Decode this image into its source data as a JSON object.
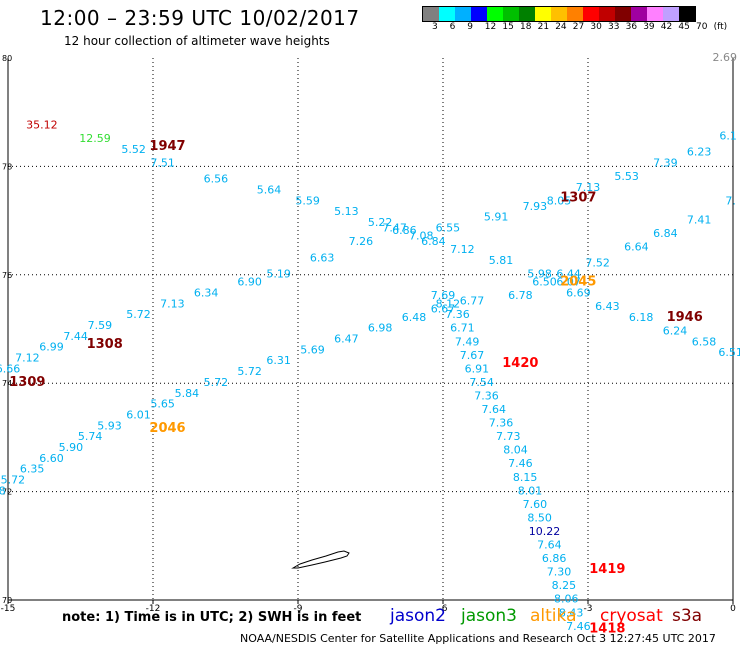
{
  "header": {
    "title": "12:00 – 23:59 UTC 10/02/2017",
    "subtitle": "12 hour collection of altimeter wave heights"
  },
  "colorbar": {
    "colors": [
      "#808080",
      "#00ffff",
      "#00b0ff",
      "#0000ff",
      "#00ff00",
      "#00c000",
      "#008000",
      "#ffff00",
      "#ffc000",
      "#ff8000",
      "#ff0000",
      "#c00000",
      "#800000",
      "#a000a0",
      "#ff80ff",
      "#c0a0ff",
      "#000000"
    ],
    "labels": [
      "3",
      "6",
      "9",
      "12",
      "15",
      "18",
      "21",
      "24",
      "27",
      "30",
      "33",
      "36",
      "39",
      "42",
      "45",
      "70",
      "(ft)"
    ]
  },
  "map": {
    "lon_ticks": [
      "-15",
      "-12",
      "-9",
      "-6",
      "-3",
      "0"
    ],
    "lat_ticks": [
      "70",
      "72",
      "74",
      "76",
      "78",
      "80"
    ],
    "max_label": "2.69"
  },
  "observations": [
    {
      "t": "35.12",
      "lon": -14.3,
      "lat": 78.7,
      "c": "#c00000"
    },
    {
      "t": "12.59",
      "lon": -13.2,
      "lat": 78.45,
      "c": "#33dd33"
    },
    {
      "t": "5.52",
      "lon": -12.4,
      "lat": 78.25,
      "c": "#00b0f0"
    },
    {
      "t": "7.51",
      "lon": -11.8,
      "lat": 78.0,
      "c": "#00b0f0"
    },
    {
      "t": "6.56",
      "lon": -10.7,
      "lat": 77.7,
      "c": "#00b0f0"
    },
    {
      "t": "5.64",
      "lon": -9.6,
      "lat": 77.5,
      "c": "#00b0f0"
    },
    {
      "t": "5.59",
      "lon": -8.8,
      "lat": 77.3,
      "c": "#00b0f0"
    },
    {
      "t": "5.13",
      "lon": -8.0,
      "lat": 77.1,
      "c": "#00b0f0"
    },
    {
      "t": "5.22",
      "lon": -7.3,
      "lat": 76.9,
      "c": "#00b0f0"
    },
    {
      "t": "6.86",
      "lon": -6.8,
      "lat": 76.75,
      "c": "#00b0f0"
    },
    {
      "t": "7.08",
      "lon": -6.45,
      "lat": 76.65,
      "c": "#00b0f0"
    },
    {
      "t": "6.84",
      "lon": -6.2,
      "lat": 76.55,
      "c": "#00b0f0"
    },
    {
      "t": "6.55",
      "lon": -5.9,
      "lat": 76.8,
      "c": "#00b0f0"
    },
    {
      "t": "5.91",
      "lon": -4.9,
      "lat": 77.0,
      "c": "#00b0f0"
    },
    {
      "t": "7.93",
      "lon": -4.1,
      "lat": 77.2,
      "c": "#00b0f0"
    },
    {
      "t": "8.05",
      "lon": -3.6,
      "lat": 77.3,
      "c": "#00b0f0"
    },
    {
      "t": "7.13",
      "lon": -3.0,
      "lat": 77.55,
      "c": "#00b0f0"
    },
    {
      "t": "5.53",
      "lon": -2.2,
      "lat": 77.75,
      "c": "#00b0f0"
    },
    {
      "t": "7.39",
      "lon": -1.4,
      "lat": 78.0,
      "c": "#00b0f0"
    },
    {
      "t": "6.23",
      "lon": -0.7,
      "lat": 78.2,
      "c": "#00b0f0"
    },
    {
      "t": "6.1",
      "lon": -0.1,
      "lat": 78.5,
      "c": "#00b0f0"
    },
    {
      "t": "7.12",
      "lon": -5.6,
      "lat": 76.4,
      "c": "#00b0f0"
    },
    {
      "t": "5.81",
      "lon": -4.8,
      "lat": 76.2,
      "c": "#00b0f0"
    },
    {
      "t": "5.98",
      "lon": -4.0,
      "lat": 75.95,
      "c": "#00b0f0"
    },
    {
      "t": "6.44",
      "lon": -3.4,
      "lat": 75.95,
      "c": "#00b0f0"
    },
    {
      "t": "6.50",
      "lon": -3.9,
      "lat": 75.8,
      "c": "#00b0f0"
    },
    {
      "t": "6.07",
      "lon": -3.4,
      "lat": 75.8,
      "c": "#00b0f0"
    },
    {
      "t": "6.78",
      "lon": -4.4,
      "lat": 75.55,
      "c": "#00b0f0"
    },
    {
      "t": "7.52",
      "lon": -2.8,
      "lat": 76.15,
      "c": "#00b0f0"
    },
    {
      "t": "6.64",
      "lon": -2.0,
      "lat": 76.45,
      "c": "#00b0f0"
    },
    {
      "t": "6.84",
      "lon": -1.4,
      "lat": 76.7,
      "c": "#00b0f0"
    },
    {
      "t": "7.41",
      "lon": -0.7,
      "lat": 76.95,
      "c": "#00b0f0"
    },
    {
      "t": "7.",
      "lon": -0.05,
      "lat": 77.3,
      "c": "#00b0f0"
    },
    {
      "t": "6.69",
      "lon": -3.2,
      "lat": 75.6,
      "c": "#00b0f0"
    },
    {
      "t": "6.43",
      "lon": -2.6,
      "lat": 75.35,
      "c": "#00b0f0"
    },
    {
      "t": "6.18",
      "lon": -1.9,
      "lat": 75.15,
      "c": "#00b0f0"
    },
    {
      "t": "6.24",
      "lon": -1.2,
      "lat": 74.9,
      "c": "#00b0f0"
    },
    {
      "t": "6.58",
      "lon": -0.6,
      "lat": 74.7,
      "c": "#00b0f0"
    },
    {
      "t": "6.51",
      "lon": -0.05,
      "lat": 74.5,
      "c": "#00b0f0"
    },
    {
      "t": "6.90",
      "lon": -10.0,
      "lat": 75.8,
      "c": "#00b0f0"
    },
    {
      "t": "5.19",
      "lon": -9.4,
      "lat": 75.95,
      "c": "#00b0f0"
    },
    {
      "t": "6.63",
      "lon": -8.5,
      "lat": 76.25,
      "c": "#00b0f0"
    },
    {
      "t": "7.26",
      "lon": -7.7,
      "lat": 76.55,
      "c": "#00b0f0"
    },
    {
      "t": "7.47",
      "lon": -7.0,
      "lat": 76.8,
      "c": "#00b0f0"
    },
    {
      "t": "6.34",
      "lon": -10.9,
      "lat": 75.6,
      "c": "#00b0f0"
    },
    {
      "t": "7.13",
      "lon": -11.6,
      "lat": 75.4,
      "c": "#00b0f0"
    },
    {
      "t": "5.72",
      "lon": -12.3,
      "lat": 75.2,
      "c": "#00b0f0"
    },
    {
      "t": "7.59",
      "lon": -13.1,
      "lat": 75.0,
      "c": "#00b0f0"
    },
    {
      "t": "7.44",
      "lon": -13.6,
      "lat": 74.8,
      "c": "#00b0f0"
    },
    {
      "t": "6.99",
      "lon": -14.1,
      "lat": 74.6,
      "c": "#00b0f0"
    },
    {
      "t": "7.12",
      "lon": -14.6,
      "lat": 74.4,
      "c": "#00b0f0"
    },
    {
      "t": "6.66",
      "lon": -15.0,
      "lat": 74.2,
      "c": "#00b0f0"
    },
    {
      "t": "6.48",
      "lon": -6.6,
      "lat": 75.15,
      "c": "#00b0f0"
    },
    {
      "t": "6.98",
      "lon": -7.3,
      "lat": 74.95,
      "c": "#00b0f0"
    },
    {
      "t": "6.47",
      "lon": -8.0,
      "lat": 74.75,
      "c": "#00b0f0"
    },
    {
      "t": "5.69",
      "lon": -8.7,
      "lat": 74.55,
      "c": "#00b0f0"
    },
    {
      "t": "6.31",
      "lon": -9.4,
      "lat": 74.35,
      "c": "#00b0f0"
    },
    {
      "t": "5.72",
      "lon": -10.0,
      "lat": 74.15,
      "c": "#00b0f0"
    },
    {
      "t": "5.72",
      "lon": -10.7,
      "lat": 73.95,
      "c": "#00b0f0"
    },
    {
      "t": "5.84",
      "lon": -11.3,
      "lat": 73.75,
      "c": "#00b0f0"
    },
    {
      "t": "5.65",
      "lon": -11.8,
      "lat": 73.55,
      "c": "#00b0f0"
    },
    {
      "t": "6.01",
      "lon": -12.3,
      "lat": 73.35,
      "c": "#00b0f0"
    },
    {
      "t": "5.93",
      "lon": -12.9,
      "lat": 73.15,
      "c": "#00b0f0"
    },
    {
      "t": "5.74",
      "lon": -13.3,
      "lat": 72.95,
      "c": "#00b0f0"
    },
    {
      "t": "5.90",
      "lon": -13.7,
      "lat": 72.75,
      "c": "#00b0f0"
    },
    {
      "t": "6.60",
      "lon": -14.1,
      "lat": 72.55,
      "c": "#00b0f0"
    },
    {
      "t": "6.35",
      "lon": -14.5,
      "lat": 72.35,
      "c": "#00b0f0"
    },
    {
      "t": "5.72",
      "lon": -14.9,
      "lat": 72.15,
      "c": "#00b0f0"
    },
    {
      "t": "6.08",
      "lon": -15.3,
      "lat": 71.95,
      "c": "#00b0f0"
    },
    {
      "t": "5.85",
      "lon": -15.6,
      "lat": 71.75,
      "c": "#00b0f0"
    },
    {
      "t": "7.69",
      "lon": -6.0,
      "lat": 75.55,
      "c": "#00b0f0"
    },
    {
      "t": "6.77",
      "lon": -5.4,
      "lat": 75.45,
      "c": "#00b0f0"
    },
    {
      "t": "8.12",
      "lon": -5.9,
      "lat": 75.4,
      "c": "#00b0f0"
    },
    {
      "t": "6.67",
      "lon": -6.0,
      "lat": 75.3,
      "c": "#00b0f0"
    },
    {
      "t": "7.36",
      "lon": -5.7,
      "lat": 75.2,
      "c": "#00b0f0"
    },
    {
      "t": "6.71",
      "lon": -5.6,
      "lat": 74.95,
      "c": "#00b0f0"
    },
    {
      "t": "7.49",
      "lon": -5.5,
      "lat": 74.7,
      "c": "#00b0f0"
    },
    {
      "t": "7.67",
      "lon": -5.4,
      "lat": 74.45,
      "c": "#00b0f0"
    },
    {
      "t": "6.91",
      "lon": -5.3,
      "lat": 74.2,
      "c": "#00b0f0"
    },
    {
      "t": "7.54",
      "lon": -5.2,
      "lat": 73.95,
      "c": "#00b0f0"
    },
    {
      "t": "7.36",
      "lon": -5.1,
      "lat": 73.7,
      "c": "#00b0f0"
    },
    {
      "t": "7.64",
      "lon": -4.95,
      "lat": 73.45,
      "c": "#00b0f0"
    },
    {
      "t": "7.36",
      "lon": -4.8,
      "lat": 73.2,
      "c": "#00b0f0"
    },
    {
      "t": "7.73",
      "lon": -4.65,
      "lat": 72.95,
      "c": "#00b0f0"
    },
    {
      "t": "8.04",
      "lon": -4.5,
      "lat": 72.7,
      "c": "#00b0f0"
    },
    {
      "t": "7.46",
      "lon": -4.4,
      "lat": 72.45,
      "c": "#00b0f0"
    },
    {
      "t": "8.15",
      "lon": -4.3,
      "lat": 72.2,
      "c": "#00b0f0"
    },
    {
      "t": "8.01",
      "lon": -4.2,
      "lat": 71.95,
      "c": "#00b0f0"
    },
    {
      "t": "7.60",
      "lon": -4.1,
      "lat": 71.7,
      "c": "#00b0f0"
    },
    {
      "t": "8.50",
      "lon": -4.0,
      "lat": 71.45,
      "c": "#00b0f0"
    },
    {
      "t": "10.22",
      "lon": -3.9,
      "lat": 71.2,
      "c": "#0000a0"
    },
    {
      "t": "7.64",
      "lon": -3.8,
      "lat": 70.95,
      "c": "#00b0f0"
    },
    {
      "t": "6.86",
      "lon": -3.7,
      "lat": 70.7,
      "c": "#00b0f0"
    },
    {
      "t": "7.30",
      "lon": -3.6,
      "lat": 70.45,
      "c": "#00b0f0"
    },
    {
      "t": "8.25",
      "lon": -3.5,
      "lat": 70.2,
      "c": "#00b0f0"
    },
    {
      "t": "8.06",
      "lon": -3.45,
      "lat": 69.95,
      "c": "#00b0f0"
    },
    {
      "t": "8.43",
      "lon": -3.35,
      "lat": 69.7,
      "c": "#00b0f0"
    },
    {
      "t": "7.46",
      "lon": -3.2,
      "lat": 69.45,
      "c": "#00b0f0"
    }
  ],
  "time_labels": [
    {
      "t": "1947",
      "lon": -11.7,
      "lat": 78.3,
      "c": "#800000"
    },
    {
      "t": "1307",
      "lon": -3.2,
      "lat": 77.35,
      "c": "#800000"
    },
    {
      "t": "1308",
      "lon": -13.0,
      "lat": 74.65,
      "c": "#800000"
    },
    {
      "t": "1309",
      "lon": -14.6,
      "lat": 73.95,
      "c": "#800000"
    },
    {
      "t": "2045",
      "lon": -3.2,
      "lat": 75.8,
      "c": "#ff9900"
    },
    {
      "t": "1946",
      "lon": -1.0,
      "lat": 75.15,
      "c": "#800000"
    },
    {
      "t": "1420",
      "lon": -4.4,
      "lat": 74.3,
      "c": "#ff0000"
    },
    {
      "t": "2046",
      "lon": -11.7,
      "lat": 73.1,
      "c": "#ff9900"
    },
    {
      "t": "1419",
      "lon": -2.6,
      "lat": 70.5,
      "c": "#ff0000"
    },
    {
      "t": "1418",
      "lon": -2.6,
      "lat": 69.4,
      "c": "#ff0000"
    }
  ],
  "note": "note:  1) Time is in UTC;  2) SWH is in feet",
  "legend": [
    {
      "label": "jason2",
      "color": "#0000cc"
    },
    {
      "label": "jason3",
      "color": "#009900"
    },
    {
      "label": "altika",
      "color": "#ff9900"
    },
    {
      "label": "cryosat",
      "color": "#ff0000"
    },
    {
      "label": "s3a",
      "color": "#800000"
    }
  ],
  "footer": "NOAA/NESDIS Center for Satellite Applications and Research   Oct  3 12:27:45 UTC 2017"
}
